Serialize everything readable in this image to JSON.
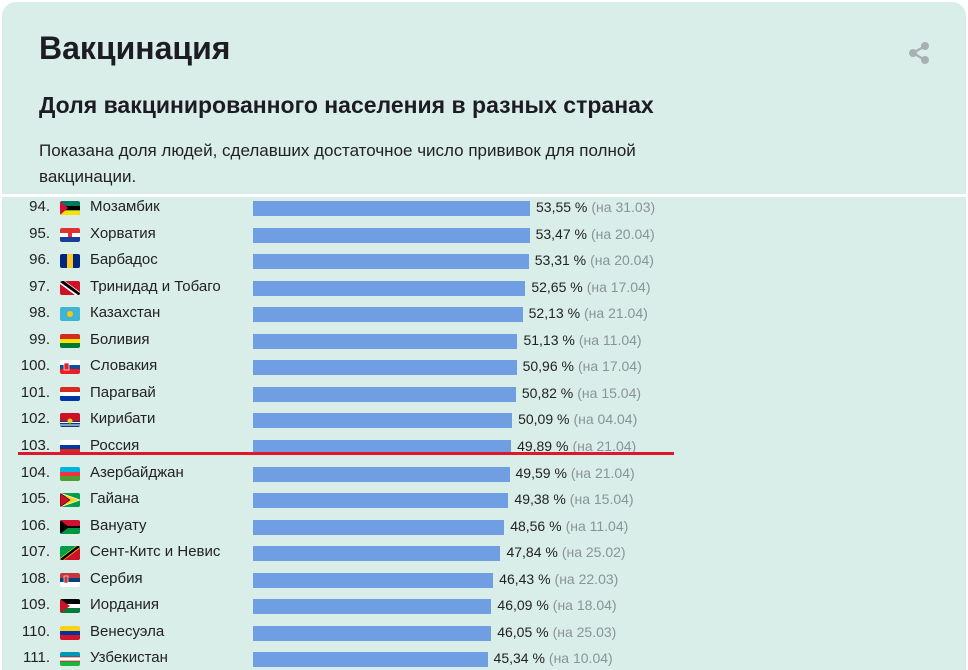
{
  "header": {
    "title": "Вакцинация",
    "subtitle": "Доля вакцинированного населения в разных странах",
    "description": "Показана доля людей, сделавших достаточное число прививок для полной вакцинации."
  },
  "icons": {
    "share": "share-icon"
  },
  "colors": {
    "bar": "#6f9ee3",
    "highlight_line": "#e0162b",
    "card_bg": "#d9ede9"
  },
  "chart_data": {
    "type": "bar",
    "orientation": "horizontal",
    "xlim": [
      0,
      100
    ],
    "highlight": "Россия",
    "rows": [
      {
        "rank": "94.",
        "country": "Мозамбик",
        "value": 53.55,
        "label": "53,55 %",
        "date": "(на 31.03)"
      },
      {
        "rank": "95.",
        "country": "Хорватия",
        "value": 53.47,
        "label": "53,47 %",
        "date": "(на 20.04)"
      },
      {
        "rank": "96.",
        "country": "Барбадос",
        "value": 53.31,
        "label": "53,31 %",
        "date": "(на 20.04)"
      },
      {
        "rank": "97.",
        "country": "Тринидад и Тобаго",
        "value": 52.65,
        "label": "52,65 %",
        "date": "(на 17.04)"
      },
      {
        "rank": "98.",
        "country": "Казахстан",
        "value": 52.13,
        "label": "52,13 %",
        "date": "(на 21.04)"
      },
      {
        "rank": "99.",
        "country": "Боливия",
        "value": 51.13,
        "label": "51,13 %",
        "date": "(на 11.04)"
      },
      {
        "rank": "100.",
        "country": "Словакия",
        "value": 50.96,
        "label": "50,96 %",
        "date": "(на 17.04)"
      },
      {
        "rank": "101.",
        "country": "Парагвай",
        "value": 50.82,
        "label": "50,82 %",
        "date": "(на 15.04)"
      },
      {
        "rank": "102.",
        "country": "Кирибати",
        "value": 50.09,
        "label": "50,09 %",
        "date": "(на 04.04)"
      },
      {
        "rank": "103.",
        "country": "Россия",
        "value": 49.89,
        "label": "49,89 %",
        "date": "(на 21.04)"
      },
      {
        "rank": "104.",
        "country": "Азербайджан",
        "value": 49.59,
        "label": "49,59 %",
        "date": "(на 21.04)"
      },
      {
        "rank": "105.",
        "country": "Гайана",
        "value": 49.38,
        "label": "49,38 %",
        "date": "(на 15.04)"
      },
      {
        "rank": "106.",
        "country": "Вануату",
        "value": 48.56,
        "label": "48,56 %",
        "date": "(на 11.04)"
      },
      {
        "rank": "107.",
        "country": "Сент-Китс и Невис",
        "value": 47.84,
        "label": "47,84 %",
        "date": "(на 25.02)"
      },
      {
        "rank": "108.",
        "country": "Сербия",
        "value": 46.43,
        "label": "46,43 %",
        "date": "(на 22.03)"
      },
      {
        "rank": "109.",
        "country": "Иордания",
        "value": 46.09,
        "label": "46,09 %",
        "date": "(на 18.04)"
      },
      {
        "rank": "110.",
        "country": "Венесуэла",
        "value": 46.05,
        "label": "46,05 %",
        "date": "(на 25.03)"
      },
      {
        "rank": "111.",
        "country": "Узбекистан",
        "value": 45.34,
        "label": "45,34 %",
        "date": "(на 10.04)"
      }
    ]
  }
}
